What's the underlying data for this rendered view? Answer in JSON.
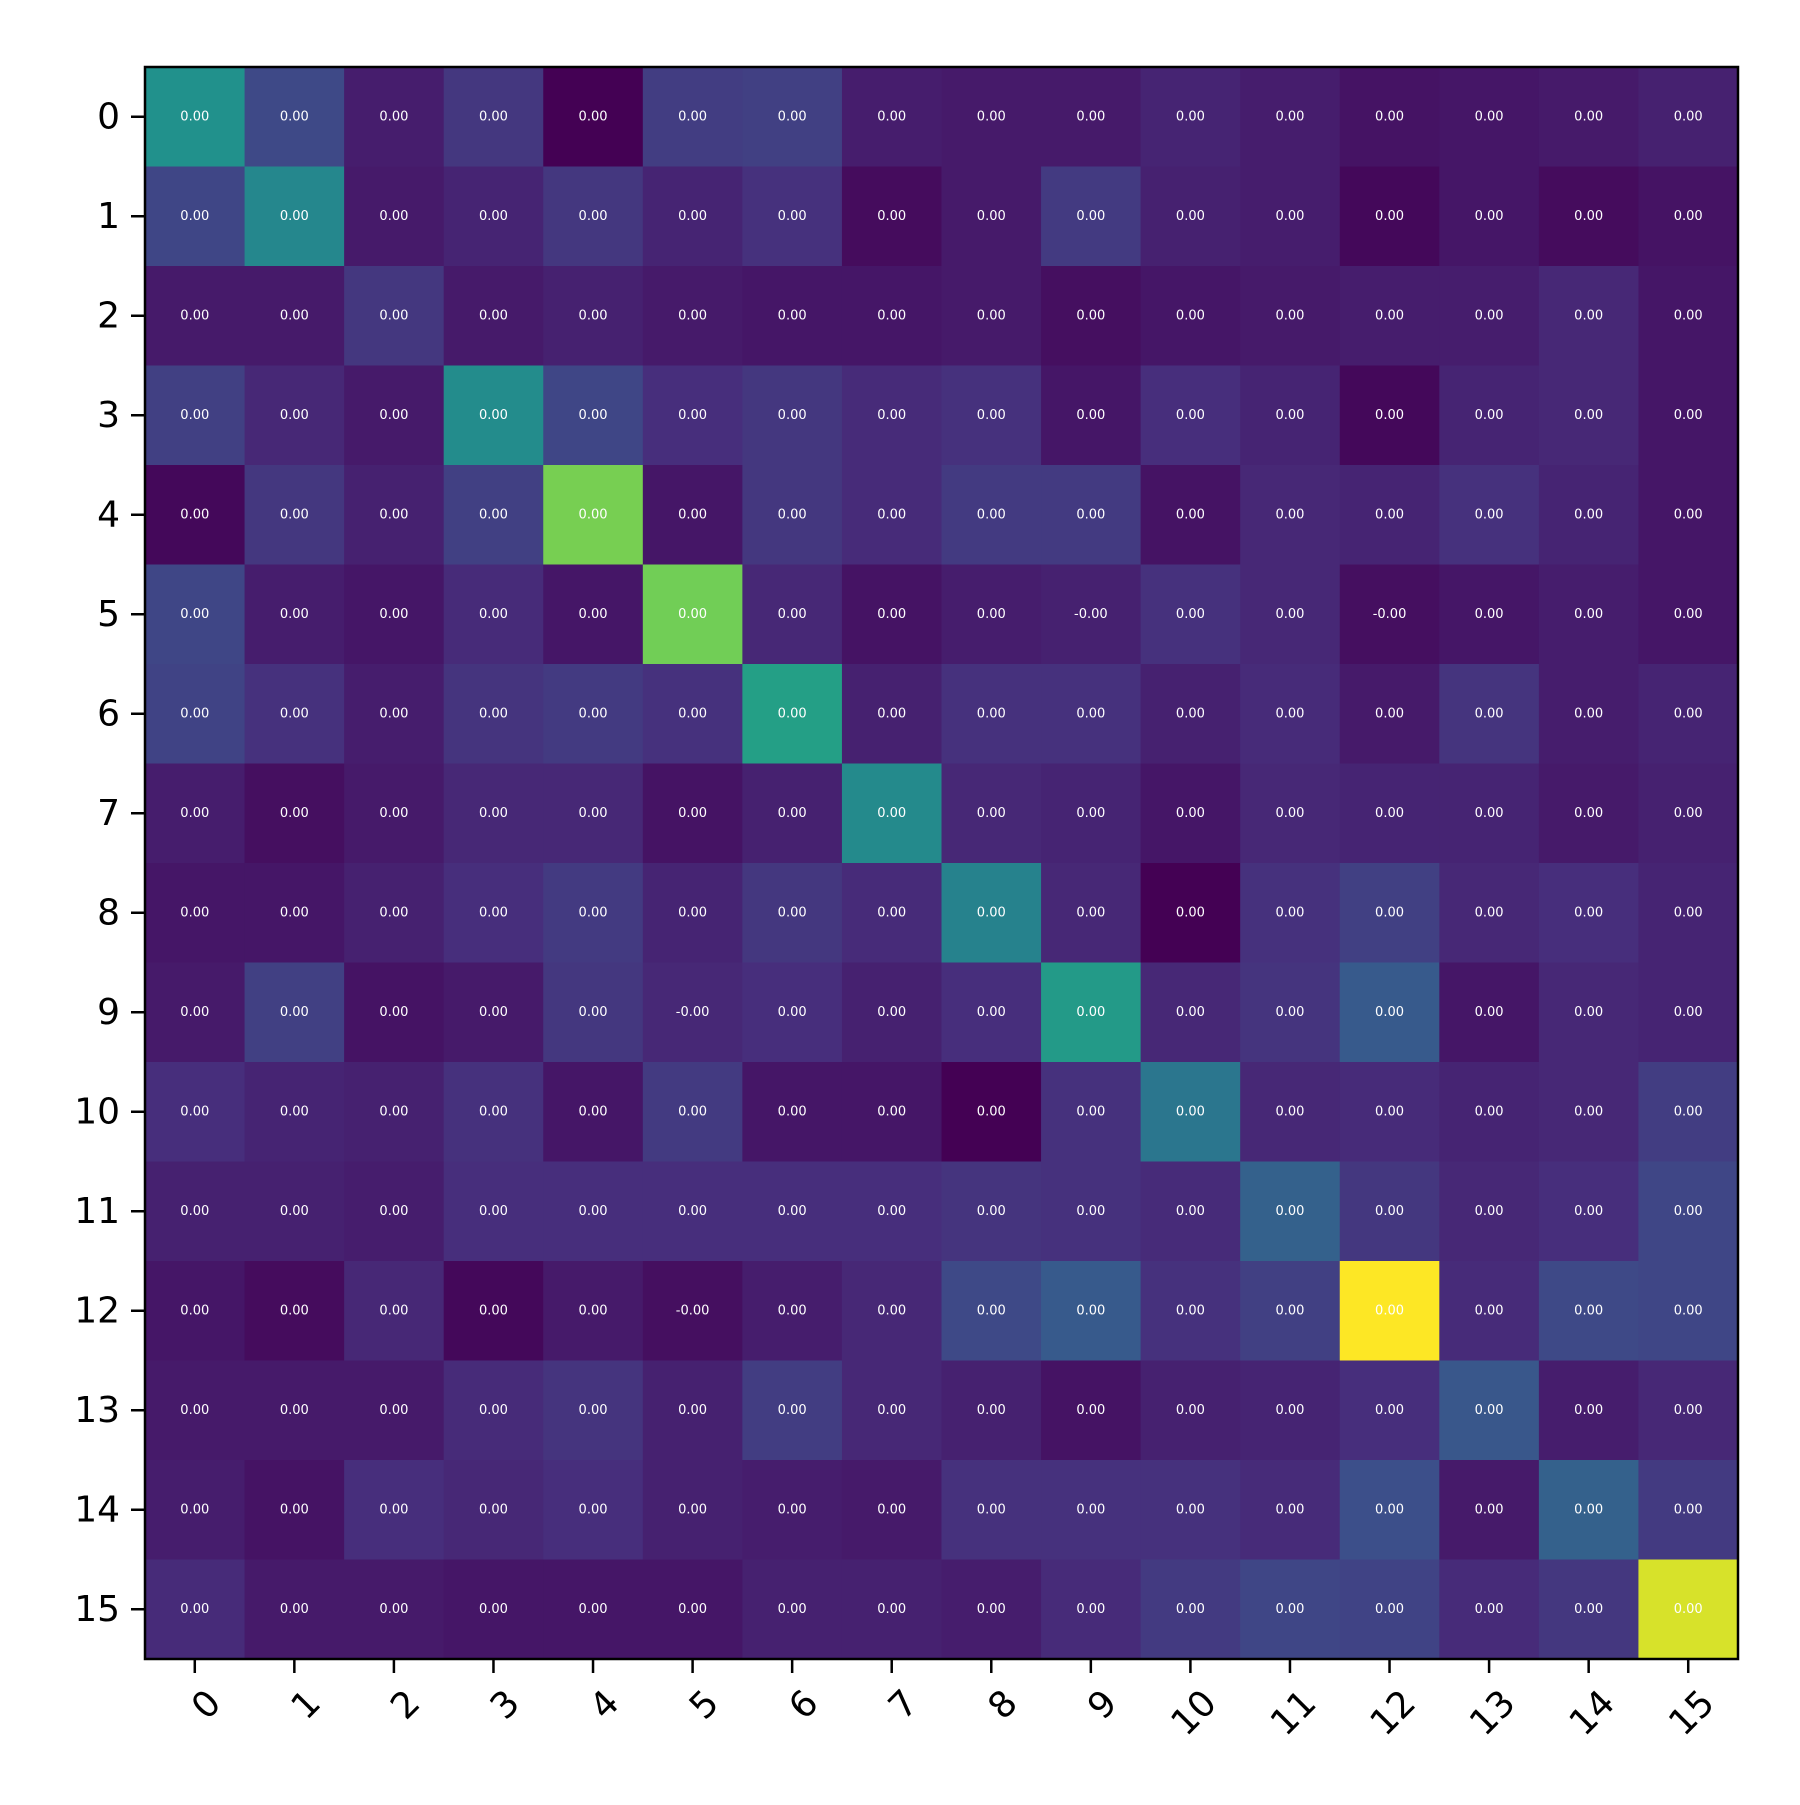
{
  "chart_data": {
    "type": "heatmap",
    "title": "",
    "xlabel": "",
    "ylabel": "",
    "x_categories": [
      "0",
      "1",
      "2",
      "3",
      "4",
      "5",
      "6",
      "7",
      "8",
      "9",
      "10",
      "11",
      "12",
      "13",
      "14",
      "15"
    ],
    "y_categories": [
      "0",
      "1",
      "2",
      "3",
      "4",
      "5",
      "6",
      "7",
      "8",
      "9",
      "10",
      "11",
      "12",
      "13",
      "14",
      "15"
    ],
    "colormap": "viridis",
    "grid": false,
    "colorbar": false,
    "values": [
      [
        0.5,
        0.22,
        0.08,
        0.16,
        0.0,
        0.18,
        0.19,
        0.08,
        0.07,
        0.07,
        0.1,
        0.08,
        0.05,
        0.06,
        0.07,
        0.09
      ],
      [
        0.21,
        0.46,
        0.07,
        0.1,
        0.16,
        0.1,
        0.14,
        0.03,
        0.07,
        0.17,
        0.09,
        0.08,
        0.02,
        0.06,
        0.03,
        0.05
      ],
      [
        0.07,
        0.07,
        0.16,
        0.07,
        0.09,
        0.07,
        0.06,
        0.06,
        0.07,
        0.04,
        0.06,
        0.07,
        0.08,
        0.08,
        0.11,
        0.06
      ],
      [
        0.19,
        0.11,
        0.07,
        0.48,
        0.21,
        0.13,
        0.16,
        0.12,
        0.14,
        0.06,
        0.13,
        0.1,
        0.02,
        0.1,
        0.11,
        0.06
      ],
      [
        0.02,
        0.16,
        0.09,
        0.19,
        0.79,
        0.06,
        0.16,
        0.12,
        0.17,
        0.17,
        0.05,
        0.11,
        0.1,
        0.14,
        0.1,
        0.06
      ],
      [
        0.21,
        0.08,
        0.06,
        0.12,
        0.06,
        0.78,
        0.11,
        0.05,
        0.08,
        0.09,
        0.14,
        0.11,
        0.04,
        0.06,
        0.08,
        0.06
      ],
      [
        0.2,
        0.14,
        0.08,
        0.15,
        0.17,
        0.14,
        0.56,
        0.09,
        0.14,
        0.14,
        0.09,
        0.12,
        0.07,
        0.15,
        0.08,
        0.1
      ],
      [
        0.08,
        0.04,
        0.07,
        0.11,
        0.11,
        0.05,
        0.09,
        0.47,
        0.11,
        0.1,
        0.06,
        0.11,
        0.1,
        0.1,
        0.07,
        0.09
      ],
      [
        0.06,
        0.06,
        0.09,
        0.13,
        0.17,
        0.1,
        0.16,
        0.12,
        0.44,
        0.11,
        0.0,
        0.14,
        0.19,
        0.11,
        0.13,
        0.1
      ],
      [
        0.07,
        0.19,
        0.05,
        0.07,
        0.16,
        0.11,
        0.13,
        0.09,
        0.13,
        0.54,
        0.11,
        0.15,
        0.28,
        0.06,
        0.11,
        0.1
      ],
      [
        0.13,
        0.1,
        0.09,
        0.14,
        0.06,
        0.17,
        0.06,
        0.06,
        0.0,
        0.14,
        0.39,
        0.11,
        0.12,
        0.1,
        0.11,
        0.18
      ],
      [
        0.09,
        0.09,
        0.08,
        0.13,
        0.13,
        0.13,
        0.13,
        0.13,
        0.15,
        0.14,
        0.12,
        0.31,
        0.16,
        0.11,
        0.13,
        0.21
      ],
      [
        0.06,
        0.03,
        0.11,
        0.02,
        0.07,
        0.04,
        0.08,
        0.11,
        0.22,
        0.28,
        0.14,
        0.19,
        1.0,
        0.12,
        0.22,
        0.21
      ],
      [
        0.07,
        0.07,
        0.07,
        0.12,
        0.15,
        0.09,
        0.18,
        0.11,
        0.09,
        0.05,
        0.09,
        0.1,
        0.13,
        0.27,
        0.08,
        0.11
      ],
      [
        0.08,
        0.05,
        0.13,
        0.11,
        0.13,
        0.09,
        0.08,
        0.07,
        0.14,
        0.14,
        0.14,
        0.12,
        0.24,
        0.07,
        0.31,
        0.17
      ],
      [
        0.12,
        0.07,
        0.07,
        0.06,
        0.06,
        0.06,
        0.09,
        0.09,
        0.08,
        0.12,
        0.17,
        0.21,
        0.2,
        0.12,
        0.16,
        0.94
      ]
    ],
    "labels": [
      [
        "0.00",
        "0.00",
        "0.00",
        "0.00",
        "0.00",
        "0.00",
        "0.00",
        "0.00",
        "0.00",
        "0.00",
        "0.00",
        "0.00",
        "0.00",
        "0.00",
        "0.00",
        "0.00"
      ],
      [
        "0.00",
        "0.00",
        "0.00",
        "0.00",
        "0.00",
        "0.00",
        "0.00",
        "0.00",
        "0.00",
        "0.00",
        "0.00",
        "0.00",
        "0.00",
        "0.00",
        "0.00",
        "0.00"
      ],
      [
        "0.00",
        "0.00",
        "0.00",
        "0.00",
        "0.00",
        "0.00",
        "0.00",
        "0.00",
        "0.00",
        "0.00",
        "0.00",
        "0.00",
        "0.00",
        "0.00",
        "0.00",
        "0.00"
      ],
      [
        "0.00",
        "0.00",
        "0.00",
        "0.00",
        "0.00",
        "0.00",
        "0.00",
        "0.00",
        "0.00",
        "0.00",
        "0.00",
        "0.00",
        "0.00",
        "0.00",
        "0.00",
        "0.00"
      ],
      [
        "0.00",
        "0.00",
        "0.00",
        "0.00",
        "0.00",
        "0.00",
        "0.00",
        "0.00",
        "0.00",
        "0.00",
        "0.00",
        "0.00",
        "0.00",
        "0.00",
        "0.00",
        "0.00"
      ],
      [
        "0.00",
        "0.00",
        "0.00",
        "0.00",
        "0.00",
        "0.00",
        "0.00",
        "0.00",
        "0.00",
        "-0.00",
        "0.00",
        "0.00",
        "-0.00",
        "0.00",
        "0.00",
        "0.00"
      ],
      [
        "0.00",
        "0.00",
        "0.00",
        "0.00",
        "0.00",
        "0.00",
        "0.00",
        "0.00",
        "0.00",
        "0.00",
        "0.00",
        "0.00",
        "0.00",
        "0.00",
        "0.00",
        "0.00"
      ],
      [
        "0.00",
        "0.00",
        "0.00",
        "0.00",
        "0.00",
        "0.00",
        "0.00",
        "0.00",
        "0.00",
        "0.00",
        "0.00",
        "0.00",
        "0.00",
        "0.00",
        "0.00",
        "0.00"
      ],
      [
        "0.00",
        "0.00",
        "0.00",
        "0.00",
        "0.00",
        "0.00",
        "0.00",
        "0.00",
        "0.00",
        "0.00",
        "0.00",
        "0.00",
        "0.00",
        "0.00",
        "0.00",
        "0.00"
      ],
      [
        "0.00",
        "0.00",
        "0.00",
        "0.00",
        "0.00",
        "-0.00",
        "0.00",
        "0.00",
        "0.00",
        "0.00",
        "0.00",
        "0.00",
        "0.00",
        "0.00",
        "0.00",
        "0.00"
      ],
      [
        "0.00",
        "0.00",
        "0.00",
        "0.00",
        "0.00",
        "0.00",
        "0.00",
        "0.00",
        "0.00",
        "0.00",
        "0.00",
        "0.00",
        "0.00",
        "0.00",
        "0.00",
        "0.00"
      ],
      [
        "0.00",
        "0.00",
        "0.00",
        "0.00",
        "0.00",
        "0.00",
        "0.00",
        "0.00",
        "0.00",
        "0.00",
        "0.00",
        "0.00",
        "0.00",
        "0.00",
        "0.00",
        "0.00"
      ],
      [
        "0.00",
        "0.00",
        "0.00",
        "0.00",
        "0.00",
        "-0.00",
        "0.00",
        "0.00",
        "0.00",
        "0.00",
        "0.00",
        "0.00",
        "0.00",
        "0.00",
        "0.00",
        "0.00"
      ],
      [
        "0.00",
        "0.00",
        "0.00",
        "0.00",
        "0.00",
        "0.00",
        "0.00",
        "0.00",
        "0.00",
        "0.00",
        "0.00",
        "0.00",
        "0.00",
        "0.00",
        "0.00",
        "0.00"
      ],
      [
        "0.00",
        "0.00",
        "0.00",
        "0.00",
        "0.00",
        "0.00",
        "0.00",
        "0.00",
        "0.00",
        "0.00",
        "0.00",
        "0.00",
        "0.00",
        "0.00",
        "0.00",
        "0.00"
      ],
      [
        "0.00",
        "0.00",
        "0.00",
        "0.00",
        "0.00",
        "0.00",
        "0.00",
        "0.00",
        "0.00",
        "0.00",
        "0.00",
        "0.00",
        "0.00",
        "0.00",
        "0.00",
        "0.00"
      ]
    ],
    "label_colors": {
      "default": "#ffffff",
      "bright": "#ffffff"
    }
  }
}
